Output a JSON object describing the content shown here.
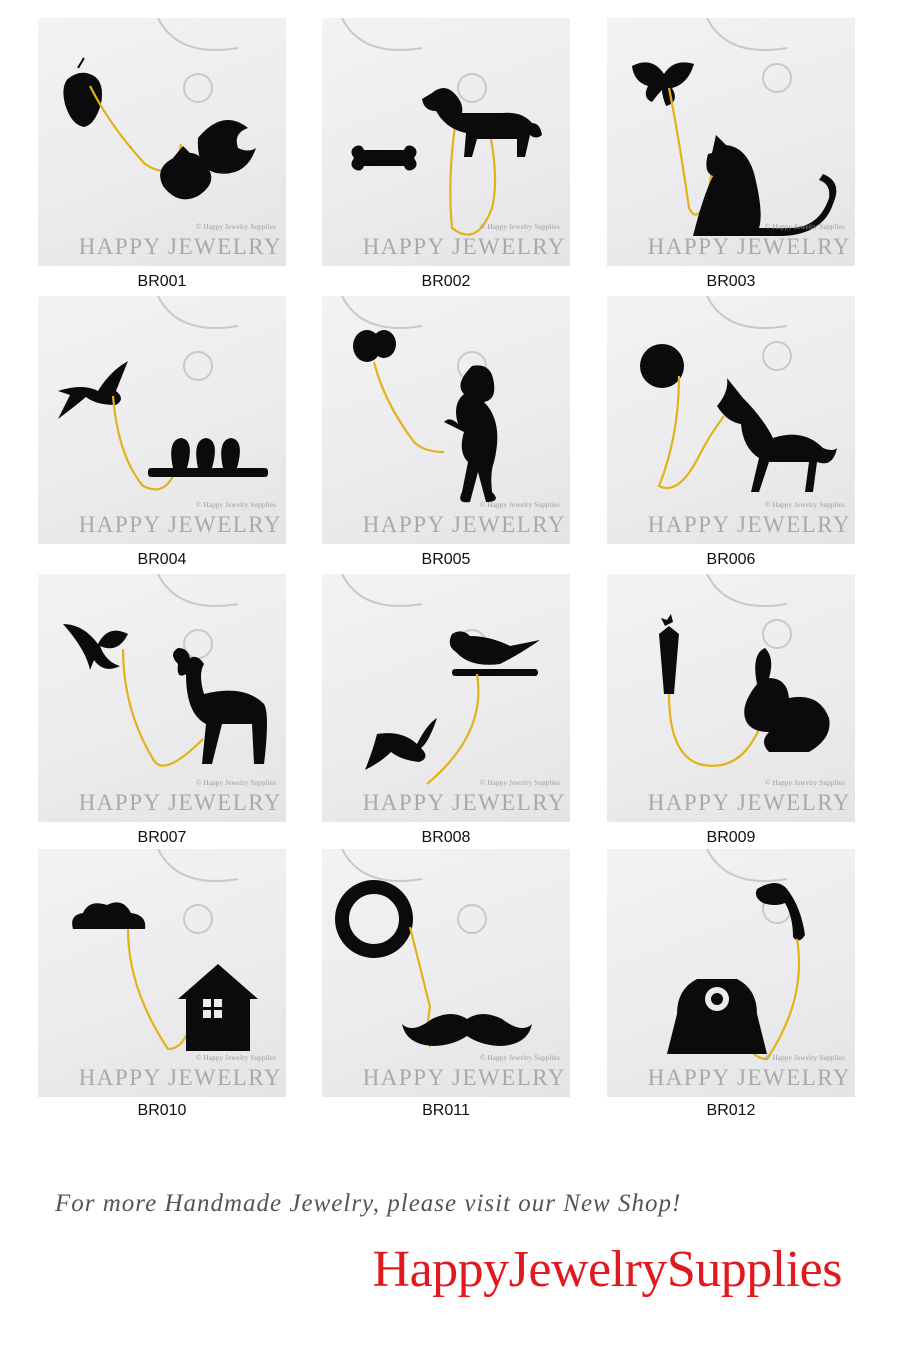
{
  "watermark": {
    "copyright": "© Happy Jewelry Supplies",
    "brand": "HAPPY JEWELRY"
  },
  "products": [
    {
      "code": "BR001",
      "icon": "acorn-and-squirrel"
    },
    {
      "code": "BR002",
      "icon": "bone-and-dog"
    },
    {
      "code": "BR003",
      "icon": "butterfly-and-cat"
    },
    {
      "code": "BR004",
      "icon": "swallow-and-birds-on-branch"
    },
    {
      "code": "BR005",
      "icon": "balloon-and-child"
    },
    {
      "code": "BR006",
      "icon": "moon-and-wolf"
    },
    {
      "code": "BR007",
      "icon": "leaf-and-fawn"
    },
    {
      "code": "BR008",
      "icon": "bird-and-swallow"
    },
    {
      "code": "BR009",
      "icon": "carrot-and-rabbit"
    },
    {
      "code": "BR010",
      "icon": "cloud-and-house"
    },
    {
      "code": "BR011",
      "icon": "monocle-and-mustache"
    },
    {
      "code": "BR012",
      "icon": "telephone"
    }
  ],
  "footer": {
    "promo": "For more Handmade Jewelry, please visit our New Shop!",
    "shop_name": "HappyJewelrySupplies"
  },
  "colors": {
    "brand_red": "#e0191f",
    "chain_gold": "#e2b21a",
    "silhouette": "#0b0b0b"
  }
}
